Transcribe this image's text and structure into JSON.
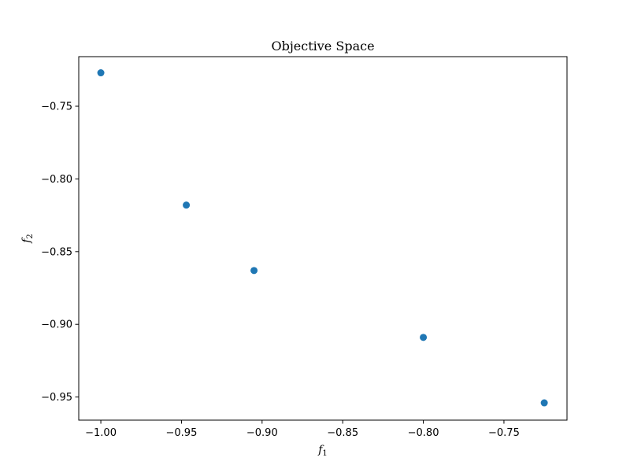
{
  "chart_data": {
    "type": "scatter",
    "title": "Objective Space",
    "xlabel": "f",
    "xlabel_subscript": "1",
    "ylabel": "f",
    "ylabel_subscript": "2",
    "xlim": [
      -1.0137,
      -0.7109
    ],
    "ylim": [
      -0.9659,
      -0.7159
    ],
    "x_ticks": [
      -1.0,
      -0.95,
      -0.9,
      -0.85,
      -0.8,
      -0.75
    ],
    "x_tick_labels": [
      "−1.00",
      "−0.95",
      "−0.90",
      "−0.85",
      "−0.80",
      "−0.75"
    ],
    "y_ticks": [
      -0.75,
      -0.8,
      -0.85,
      -0.9,
      -0.95
    ],
    "y_tick_labels": [
      "−0.75",
      "−0.80",
      "−0.85",
      "−0.90",
      "−0.95"
    ],
    "grid": false,
    "series": [
      {
        "color": "#1f77b4",
        "x": [
          -1.0,
          -0.947,
          -0.905,
          -0.8,
          -0.725
        ],
        "y": [
          -0.727,
          -0.818,
          -0.863,
          -0.909,
          -0.954
        ]
      }
    ]
  }
}
